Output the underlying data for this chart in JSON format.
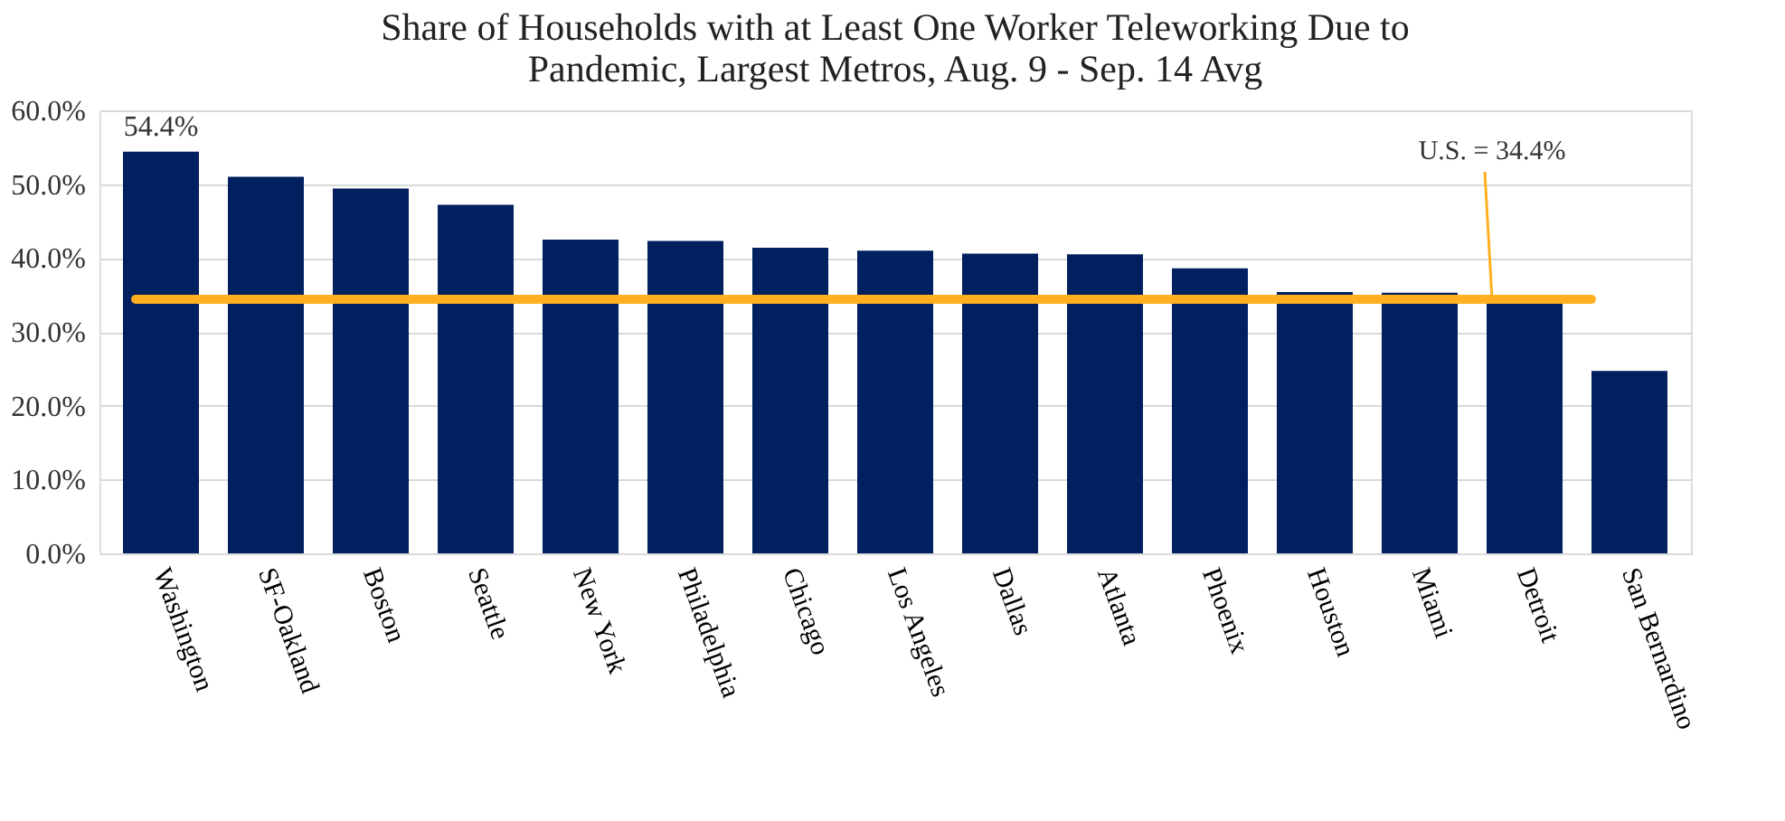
{
  "chart_data": {
    "type": "bar",
    "title": "Share of Households with at Least One Worker Teleworking Due to Pandemic, Largest Metros, Aug. 9 - Sep. 14 Avg",
    "categories": [
      "Washington",
      "SF-Oakland",
      "Boston",
      "Seattle",
      "New York",
      "Philadelphia",
      "Chicago",
      "Los Angeles",
      "Dallas",
      "Atlanta",
      "Phoenix",
      "Houston",
      "Miami",
      "Detroit",
      "San Bernardino"
    ],
    "values": [
      54.4,
      51.0,
      49.4,
      47.2,
      42.5,
      42.3,
      41.4,
      41.0,
      40.6,
      40.5,
      38.6,
      35.4,
      35.3,
      34.0,
      24.7
    ],
    "value_labels": [
      "54.4%",
      null,
      null,
      null,
      null,
      null,
      null,
      null,
      null,
      null,
      null,
      null,
      null,
      null,
      null
    ],
    "color": "#002060",
    "ylim": [
      0,
      60
    ],
    "yticks": [
      {
        "value": 0,
        "label": "0.0%"
      },
      {
        "value": 10,
        "label": "10.0%"
      },
      {
        "value": 20,
        "label": "20.0%"
      },
      {
        "value": 30,
        "label": "30.0%"
      },
      {
        "value": 40,
        "label": "40.0%"
      },
      {
        "value": 50,
        "label": "50.0%"
      },
      {
        "value": 60,
        "label": "60.0%"
      }
    ],
    "grid": "y",
    "ref_lines": [
      {
        "axis": "y",
        "value": 34.4,
        "label": "U.S. = 34.4%",
        "color": "#ffb020"
      }
    ]
  }
}
